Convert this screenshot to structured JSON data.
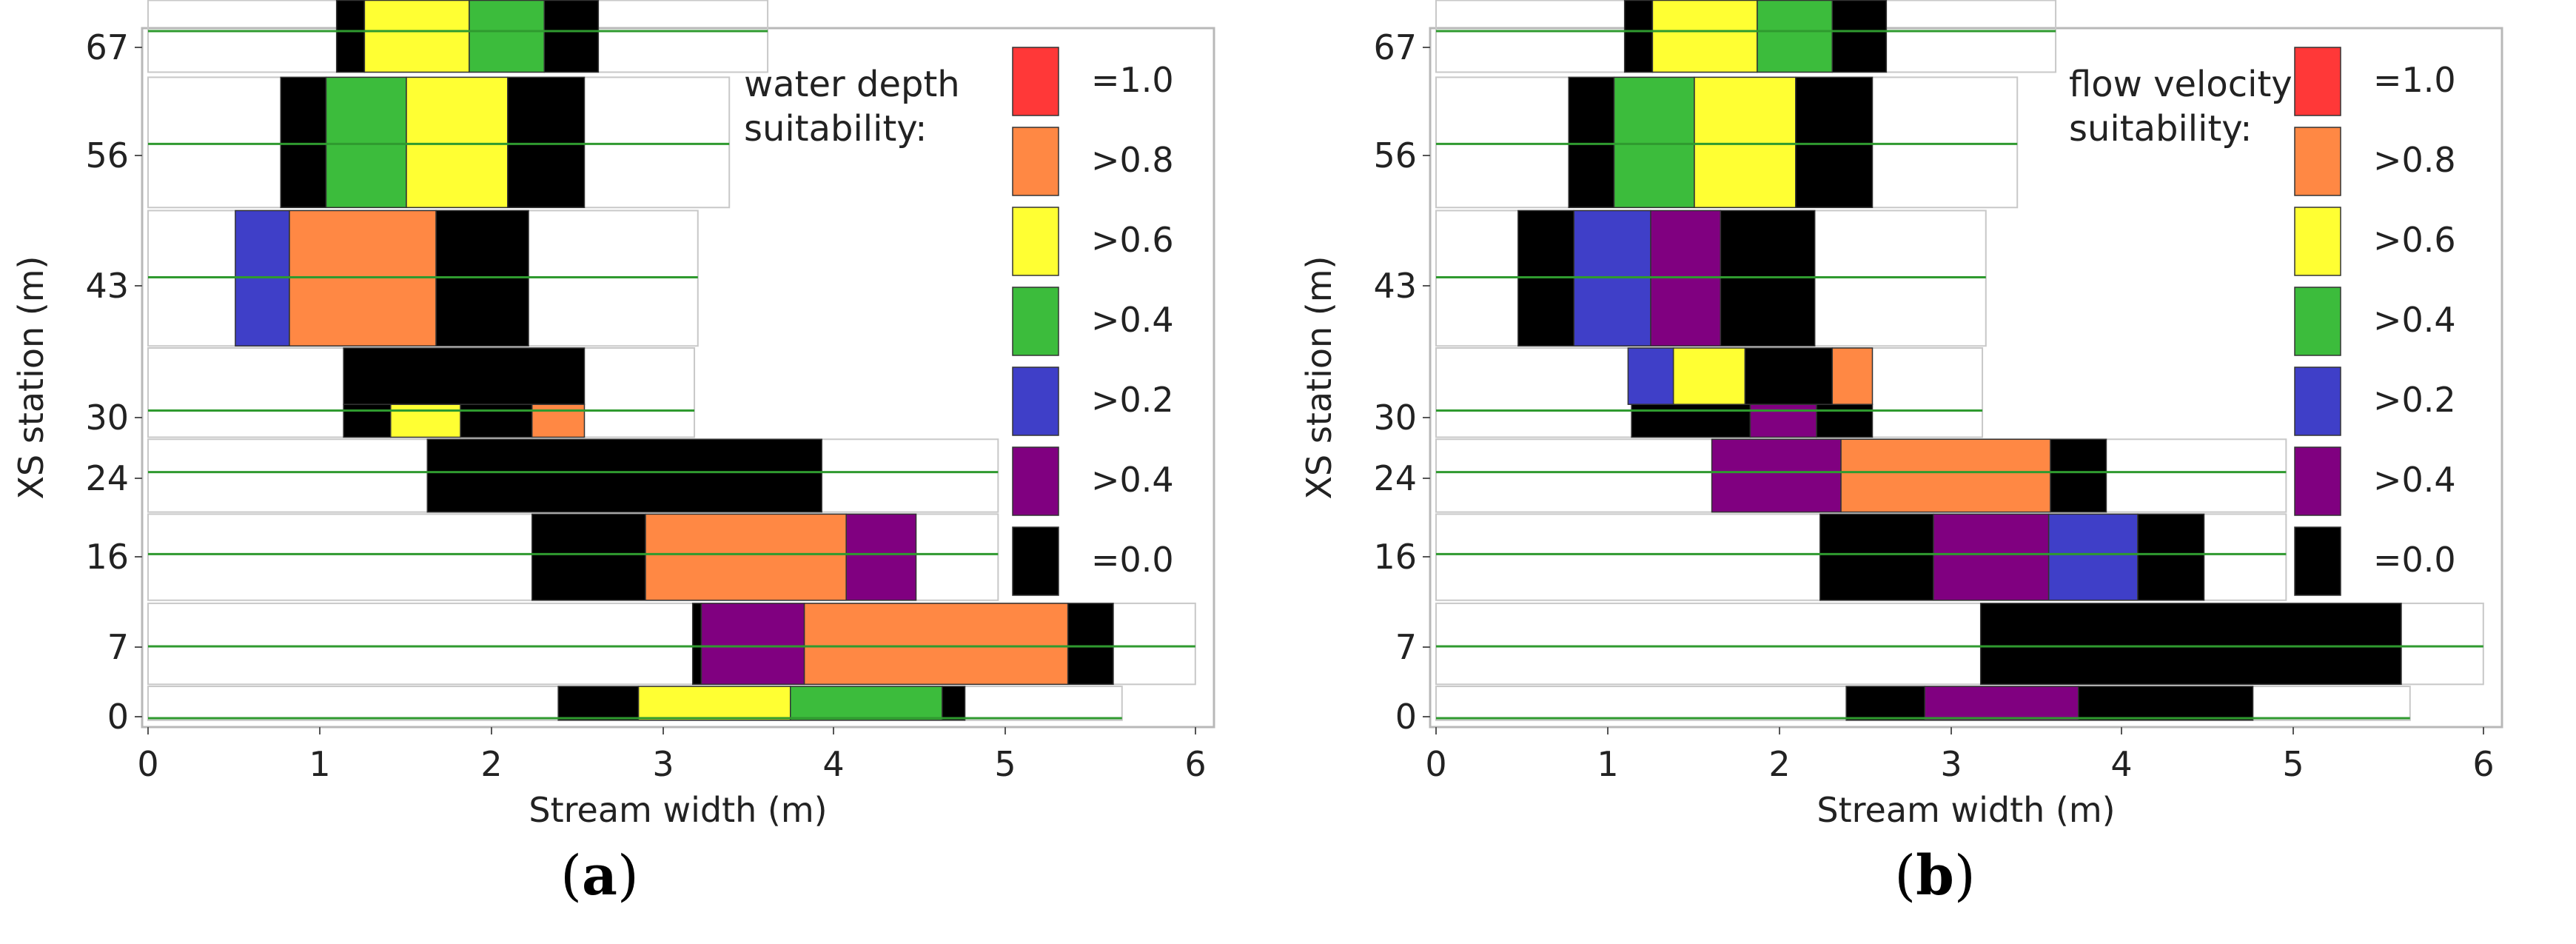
{
  "chart_data": [
    {
      "type": "heatmap",
      "panel_label": "a",
      "xlabel": "Stream width (m)",
      "ylabel": "XS station (m)",
      "xlim": [
        0,
        6
      ],
      "x_ticks": [
        "0",
        "1",
        "2",
        "3",
        "4",
        "5",
        "6"
      ],
      "y_ticks": [
        "0",
        "7",
        "16",
        "24",
        "30",
        "43",
        "56",
        "67"
      ],
      "legend_title_lines": [
        "water depth",
        "suitability:"
      ],
      "legend": [
        {
          "label": "=1.0",
          "color": "#ff3838"
        },
        {
          "label": ">0.8",
          "color": "#ff8844"
        },
        {
          "label": ">0.6",
          "color": "#ffff33"
        },
        {
          "label": ">0.4",
          "color": "#3cbc3c"
        },
        {
          "label": ">0.2",
          "color": "#3f3fc8"
        },
        {
          "label": ">0.4",
          "color": "#800080"
        },
        {
          "label": "=0.0",
          "color": "#000000"
        }
      ],
      "transects": [
        {
          "station": 67,
          "y_top": 70,
          "y_bottom": 63,
          "line_x": [
            0,
            3.55
          ],
          "cells": [
            {
              "x0": 1.08,
              "x1": 1.24,
              "value": "=0.0"
            },
            {
              "x0": 1.24,
              "x1": 1.84,
              "value": ">0.6"
            },
            {
              "x0": 1.84,
              "x1": 2.27,
              "value": ">0.4"
            },
            {
              "x0": 2.27,
              "x1": 2.58,
              "value": "=0.0"
            }
          ]
        },
        {
          "station": 56,
          "y_top": 62.5,
          "y_bottom": 49.8,
          "line_x": [
            0,
            3.33
          ],
          "cells": [
            {
              "x0": 0.76,
              "x1": 1.02,
              "value": "=0.0"
            },
            {
              "x0": 1.02,
              "x1": 1.48,
              "value": ">0.4"
            },
            {
              "x0": 1.48,
              "x1": 2.06,
              "value": ">0.6"
            },
            {
              "x0": 2.06,
              "x1": 2.5,
              "value": "=0.0"
            }
          ]
        },
        {
          "station": 43,
          "y_top": 49.5,
          "y_bottom": 36.3,
          "line_x": [
            0,
            3.15
          ],
          "cells": [
            {
              "x0": 0.5,
              "x1": 0.81,
              "value": ">0.2"
            },
            {
              "x0": 0.81,
              "x1": 1.65,
              "value": ">0.8"
            },
            {
              "x0": 1.65,
              "x1": 2.18,
              "value": "=0.0"
            }
          ]
        },
        {
          "station": 30,
          "y_top": 36.1,
          "y_bottom": 27.4,
          "line_x": [
            0,
            3.13
          ],
          "cells": [
            {
              "x0": 1.12,
              "x1": 2.5,
              "value": "=0.0",
              "y_top": 36.1,
              "y_bottom": 30.6
            },
            {
              "x0": 1.12,
              "x1": 1.39,
              "value": "=0.0",
              "y_top": 30.6,
              "y_bottom": 27.4
            },
            {
              "x0": 1.39,
              "x1": 1.79,
              "value": ">0.6",
              "y_top": 30.6,
              "y_bottom": 27.4
            },
            {
              "x0": 1.79,
              "x1": 2.2,
              "value": "=0.0",
              "y_top": 30.6,
              "y_bottom": 27.4
            },
            {
              "x0": 2.2,
              "x1": 2.5,
              "value": ">0.8",
              "y_top": 30.6,
              "y_bottom": 27.4
            }
          ]
        },
        {
          "station": 24,
          "y_top": 27.2,
          "y_bottom": 20.1,
          "line_x": [
            0,
            4.87
          ],
          "cells": [
            {
              "x0": 1.6,
              "x1": 3.86,
              "value": "=0.0"
            }
          ]
        },
        {
          "station": 16,
          "y_top": 19.9,
          "y_bottom": 11.5,
          "line_x": [
            0,
            4.87
          ],
          "cells": [
            {
              "x0": 2.2,
              "x1": 2.85,
              "value": "=0.0"
            },
            {
              "x0": 2.85,
              "x1": 4.0,
              "value": ">0.8"
            },
            {
              "x0": 4.0,
              "x1": 4.4,
              "value": ">0.4"
            }
          ]
        },
        {
          "station": 7,
          "y_top": 11.2,
          "y_bottom": 3.3,
          "line_x": [
            0,
            6.0
          ],
          "cells": [
            {
              "x0": 3.12,
              "x1": 3.17,
              "value": "=0.0"
            },
            {
              "x0": 3.17,
              "x1": 3.76,
              "value": ">0.4"
            },
            {
              "x0": 3.76,
              "x1": 5.27,
              "value": ">0.8"
            },
            {
              "x0": 5.27,
              "x1": 5.53,
              "value": "=0.0"
            }
          ]
        },
        {
          "station": 0,
          "y_top": 3.1,
          "y_bottom": -0.2,
          "line_x": [
            0,
            5.58
          ],
          "cells": [
            {
              "x0": 2.35,
              "x1": 2.81,
              "value": "=0.0"
            },
            {
              "x0": 2.81,
              "x1": 3.68,
              "value": ">0.6"
            },
            {
              "x0": 3.68,
              "x1": 4.55,
              "value": ">0.4"
            },
            {
              "x0": 4.55,
              "x1": 4.68,
              "value": "=0.0"
            }
          ]
        }
      ]
    },
    {
      "type": "heatmap",
      "panel_label": "b",
      "xlabel": "Stream width (m)",
      "ylabel": "XS station (m)",
      "xlim": [
        0,
        6
      ],
      "x_ticks": [
        "0",
        "1",
        "2",
        "3",
        "4",
        "5",
        "6"
      ],
      "y_ticks": [
        "0",
        "7",
        "16",
        "24",
        "30",
        "43",
        "56",
        "67"
      ],
      "legend_title_lines": [
        "flow velocity",
        "suitability:"
      ],
      "legend": [
        {
          "label": "=1.0",
          "color": "#ff3838"
        },
        {
          "label": ">0.8",
          "color": "#ff8844"
        },
        {
          "label": ">0.6",
          "color": "#ffff33"
        },
        {
          "label": ">0.4",
          "color": "#3cbc3c"
        },
        {
          "label": ">0.2",
          "color": "#3f3fc8"
        },
        {
          "label": ">0.4",
          "color": "#800080"
        },
        {
          "label": "=0.0",
          "color": "#000000"
        }
      ],
      "transects": [
        {
          "station": 67,
          "y_top": 70,
          "y_bottom": 63,
          "line_x": [
            0,
            3.55
          ],
          "cells": [
            {
              "x0": 1.08,
              "x1": 1.24,
              "value": "=0.0"
            },
            {
              "x0": 1.24,
              "x1": 1.84,
              "value": ">0.6"
            },
            {
              "x0": 1.84,
              "x1": 2.27,
              "value": ">0.4"
            },
            {
              "x0": 2.27,
              "x1": 2.58,
              "value": "=0.0"
            }
          ]
        },
        {
          "station": 56,
          "y_top": 62.5,
          "y_bottom": 49.8,
          "line_x": [
            0,
            3.33
          ],
          "cells": [
            {
              "x0": 0.76,
              "x1": 1.02,
              "value": "=0.0"
            },
            {
              "x0": 1.02,
              "x1": 1.48,
              "value": ">0.4"
            },
            {
              "x0": 1.48,
              "x1": 2.06,
              "value": ">0.6"
            },
            {
              "x0": 2.06,
              "x1": 2.5,
              "value": "=0.0"
            }
          ]
        },
        {
          "station": 43,
          "y_top": 49.5,
          "y_bottom": 36.3,
          "line_x": [
            0,
            3.15
          ],
          "cells": [
            {
              "x0": 0.47,
              "x1": 0.79,
              "value": "=0.0"
            },
            {
              "x0": 0.79,
              "x1": 1.23,
              "value": ">0.2"
            },
            {
              "x0": 1.23,
              "x1": 1.63,
              "value": ">0.4"
            },
            {
              "x0": 1.63,
              "x1": 2.17,
              "value": "=0.0"
            }
          ]
        },
        {
          "station": 30,
          "y_top": 36.1,
          "y_bottom": 27.4,
          "line_x": [
            0,
            3.13
          ],
          "cells": [
            {
              "x0": 1.1,
              "x1": 1.36,
              "value": ">0.2",
              "y_top": 36.1,
              "y_bottom": 30.6
            },
            {
              "x0": 1.36,
              "x1": 1.77,
              "value": ">0.6",
              "y_top": 36.1,
              "y_bottom": 30.6
            },
            {
              "x0": 1.77,
              "x1": 2.27,
              "value": "=0.0",
              "y_top": 36.1,
              "y_bottom": 30.6
            },
            {
              "x0": 2.27,
              "x1": 2.5,
              "value": ">0.8",
              "y_top": 36.1,
              "y_bottom": 30.6
            },
            {
              "x0": 1.12,
              "x1": 1.8,
              "value": "=0.0",
              "y_top": 30.6,
              "y_bottom": 27.4
            },
            {
              "x0": 1.8,
              "x1": 2.18,
              "value": ">0.4",
              "y_top": 30.6,
              "y_bottom": 27.4
            },
            {
              "x0": 2.18,
              "x1": 2.5,
              "value": "=0.0",
              "y_top": 30.6,
              "y_bottom": 27.4
            }
          ]
        },
        {
          "station": 24,
          "y_top": 27.2,
          "y_bottom": 20.1,
          "line_x": [
            0,
            4.87
          ],
          "cells": [
            {
              "x0": 1.58,
              "x1": 2.32,
              "value": ">0.4"
            },
            {
              "x0": 2.32,
              "x1": 3.52,
              "value": ">0.8"
            },
            {
              "x0": 3.52,
              "x1": 3.84,
              "value": "=0.0"
            }
          ]
        },
        {
          "station": 16,
          "y_top": 19.9,
          "y_bottom": 11.5,
          "line_x": [
            0,
            4.87
          ],
          "cells": [
            {
              "x0": 2.2,
              "x1": 2.85,
              "value": "=0.0"
            },
            {
              "x0": 2.85,
              "x1": 3.51,
              "value": ">0.4"
            },
            {
              "x0": 3.51,
              "x1": 4.02,
              "value": ">0.2"
            },
            {
              "x0": 4.02,
              "x1": 4.4,
              "value": "=0.0"
            }
          ]
        },
        {
          "station": 7,
          "y_top": 11.2,
          "y_bottom": 3.3,
          "line_x": [
            0,
            6.0
          ],
          "cells": [
            {
              "x0": 3.12,
              "x1": 5.53,
              "value": "=0.0"
            }
          ]
        },
        {
          "station": 0,
          "y_top": 3.1,
          "y_bottom": -0.2,
          "line_x": [
            0,
            5.58
          ],
          "cells": [
            {
              "x0": 2.35,
              "x1": 2.8,
              "value": "=0.0"
            },
            {
              "x0": 2.8,
              "x1": 3.68,
              "value": ">0.4"
            },
            {
              "x0": 3.68,
              "x1": 4.68,
              "value": "=0.0"
            }
          ]
        }
      ]
    }
  ]
}
